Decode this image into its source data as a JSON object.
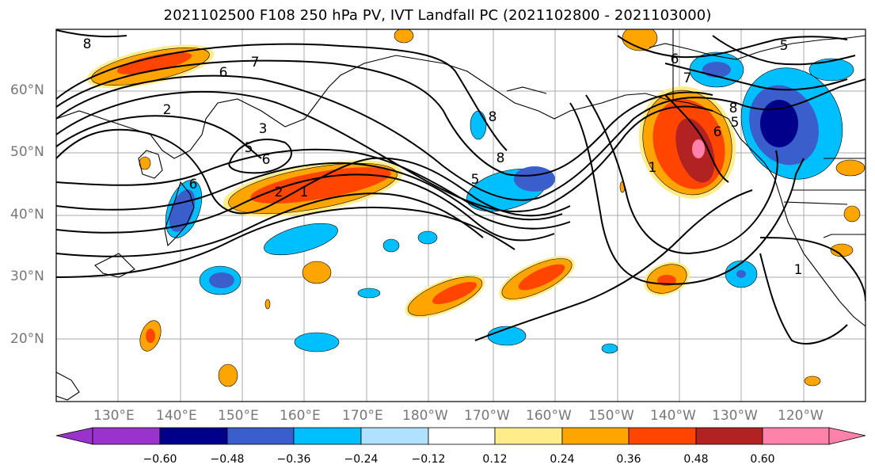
{
  "title": "2021102500 F108 250 hPa PV, IVT Landfall PC (2021102800 - 2021103000)",
  "latitude_labels": [
    "60°N",
    "50°N",
    "40°N",
    "30°N",
    "20°N"
  ],
  "longitude_labels": [
    "130°E",
    "140°E",
    "150°E",
    "160°E",
    "170°E",
    "180°W",
    "170°W",
    "160°W",
    "150°W",
    "140°W",
    "130°W",
    "120°W"
  ],
  "contour_labels": [
    "8",
    "7",
    "6",
    "2",
    "3",
    "5",
    "6",
    "2",
    "1",
    "5",
    "8",
    "8",
    "6",
    "1",
    "5",
    "7",
    "6",
    "5",
    "8",
    "6",
    "1"
  ],
  "colorbar": {
    "tick_labels": [
      "−0.60",
      "−0.48",
      "−0.36",
      "−0.24",
      "−0.12",
      "0.12",
      "0.24",
      "0.36",
      "0.48",
      "0.60"
    ],
    "colors": [
      "#9a32cd",
      "#00008b",
      "#3a5fcd",
      "#00bfff",
      "#b0e2ff",
      "#ffffff",
      "#ffec8b",
      "#ffa500",
      "#ff4500",
      "#b22222",
      "#ff82ab"
    ]
  }
}
